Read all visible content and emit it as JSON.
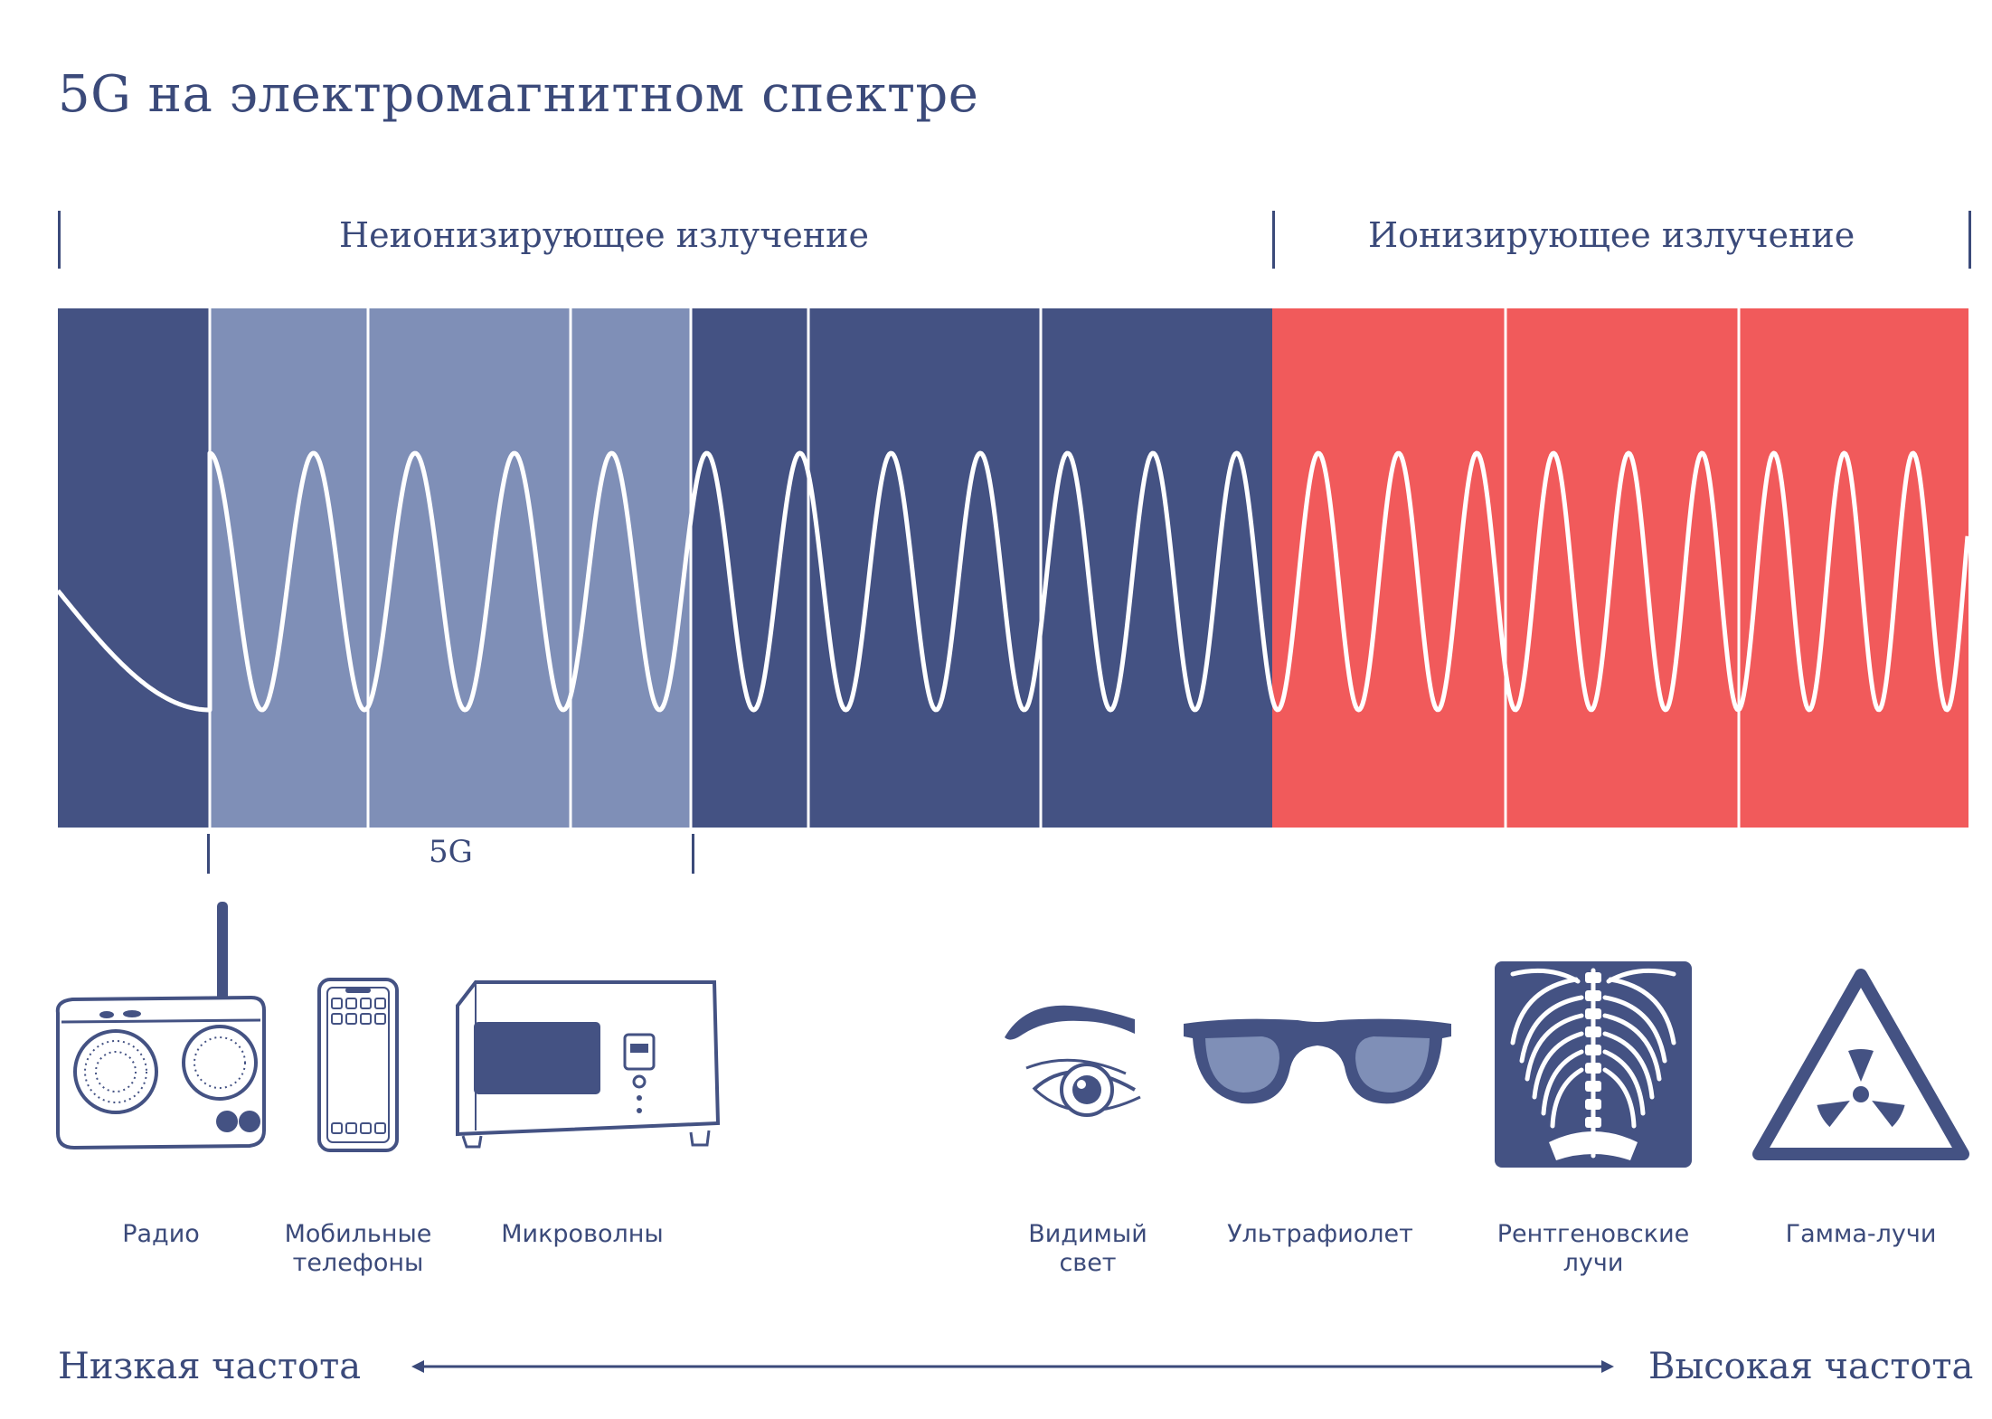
{
  "title": "5G на электромагнитном спектре",
  "regions": {
    "nonionizing": "Неионизирующее излучение",
    "ionizing": "Ионизирующее излучение"
  },
  "band_label": "5G",
  "colors": {
    "dark_blue": "#445283",
    "light_blue": "#7f8fb7",
    "red": "#f15a5b",
    "text": "#3b4a7a",
    "wave": "#ffffff"
  },
  "sources": [
    {
      "id": "radio",
      "label": "Радио",
      "icon": "radio-icon"
    },
    {
      "id": "mobile",
      "label": "Мобильные телефоны",
      "line1": "Мобильные",
      "line2": "телефоны",
      "icon": "smartphone-icon"
    },
    {
      "id": "microwave",
      "label": "Микроволны",
      "icon": "microwave-oven-icon"
    },
    {
      "id": "visible",
      "label": "Видимый свет",
      "line1": "Видимый",
      "line2": "свет",
      "icon": "eye-icon"
    },
    {
      "id": "uv",
      "label": "Ультрафиолет",
      "icon": "sunglasses-icon"
    },
    {
      "id": "xray",
      "label": "Рентгеновские лучи",
      "line1": "Рентгеновские",
      "line2": "лучи",
      "icon": "xray-chest-icon"
    },
    {
      "id": "gamma",
      "label": "Гамма-лучи",
      "icon": "radiation-warning-icon"
    }
  ],
  "axis": {
    "low": "Низкая частота",
    "high": "Высокая частота"
  }
}
